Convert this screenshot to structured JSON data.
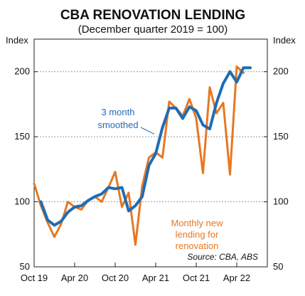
{
  "chart_data": {
    "type": "line",
    "title": "CBA RENOVATION LENDING",
    "subtitle": "(December quarter 2019 = 100)",
    "ylabel_left": "Index",
    "ylabel_right": "Index",
    "ylim": [
      50,
      225
    ],
    "yticks": [
      50,
      100,
      150,
      200
    ],
    "x_start": "2019-10",
    "x_end": "2022-06",
    "xticks": [
      {
        "label": "Oct 19",
        "month": "2019-10"
      },
      {
        "label": "Apr 20",
        "month": "2020-04"
      },
      {
        "label": "Oct 20",
        "month": "2020-10"
      },
      {
        "label": "Apr 21",
        "month": "2021-04"
      },
      {
        "label": "Oct 21",
        "month": "2021-10"
      },
      {
        "label": "Apr 22",
        "month": "2022-04"
      }
    ],
    "grid": true,
    "source": "Source: CBA, ABS",
    "series": [
      {
        "name": "Monthly new lending for renovation",
        "label_lines": [
          "Monthly new",
          "lending for",
          "renovation"
        ],
        "color": "#e87722",
        "x": [
          "2019-10",
          "2019-11",
          "2019-12",
          "2020-01",
          "2020-02",
          "2020-03",
          "2020-04",
          "2020-05",
          "2020-06",
          "2020-07",
          "2020-08",
          "2020-09",
          "2020-10",
          "2020-11",
          "2020-12",
          "2021-01",
          "2021-02",
          "2021-03",
          "2021-04",
          "2021-05",
          "2021-06",
          "2021-07",
          "2021-08",
          "2021-09",
          "2021-10",
          "2021-11",
          "2021-12",
          "2022-01",
          "2022-02",
          "2022-03",
          "2022-04",
          "2022-05"
        ],
        "values": [
          114,
          97,
          84,
          73,
          83,
          100,
          96,
          94,
          101,
          104,
          100,
          111,
          123,
          96,
          107,
          67,
          112,
          134,
          138,
          134,
          177,
          172,
          166,
          179,
          164,
          122,
          188,
          168,
          176,
          121,
          204,
          199
        ]
      },
      {
        "name": "3 month smoothed",
        "label_lines": [
          "3 month",
          "smoothed"
        ],
        "color": "#1f6db3",
        "x": [
          "2019-11",
          "2019-12",
          "2020-01",
          "2020-02",
          "2020-03",
          "2020-04",
          "2020-05",
          "2020-06",
          "2020-07",
          "2020-08",
          "2020-09",
          "2020-10",
          "2020-11",
          "2020-12",
          "2021-01",
          "2021-02",
          "2021-03",
          "2021-04",
          "2021-05",
          "2021-06",
          "2021-07",
          "2021-08",
          "2021-09",
          "2021-10",
          "2021-11",
          "2021-12",
          "2022-01",
          "2022-02",
          "2022-03",
          "2022-04",
          "2022-05",
          "2022-06"
        ],
        "values": [
          100,
          86,
          82,
          85,
          92,
          96,
          97,
          101,
          104,
          106,
          111,
          110,
          111,
          93,
          97,
          104,
          128,
          137,
          157,
          172,
          172,
          164,
          173,
          170,
          159,
          156,
          176,
          191,
          200,
          192,
          203,
          203
        ]
      }
    ]
  }
}
